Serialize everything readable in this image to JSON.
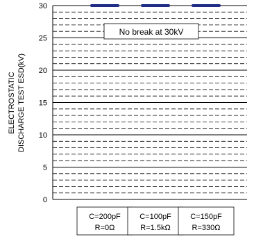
{
  "chart_data": {
    "type": "bar",
    "ylabel_lines": [
      "ELECTROSTATIC",
      "DISCHARGE TEST ESD(kV)"
    ],
    "ylim": [
      0,
      30
    ],
    "yticks": [
      "0",
      "5",
      "10",
      "15",
      "20",
      "25",
      "30"
    ],
    "grid": true,
    "annotation": "No break at 30kV",
    "categories": [
      {
        "line1": "C=200pF",
        "line2": "R=0Ω"
      },
      {
        "line1": "C=100pF",
        "line2": "R=1.5kΩ"
      },
      {
        "line1": "C=150pF",
        "line2": "R=330Ω"
      }
    ],
    "values": [
      30,
      30,
      30
    ],
    "colors": {
      "bar": "#1f2d86",
      "grid": "#000000"
    }
  }
}
